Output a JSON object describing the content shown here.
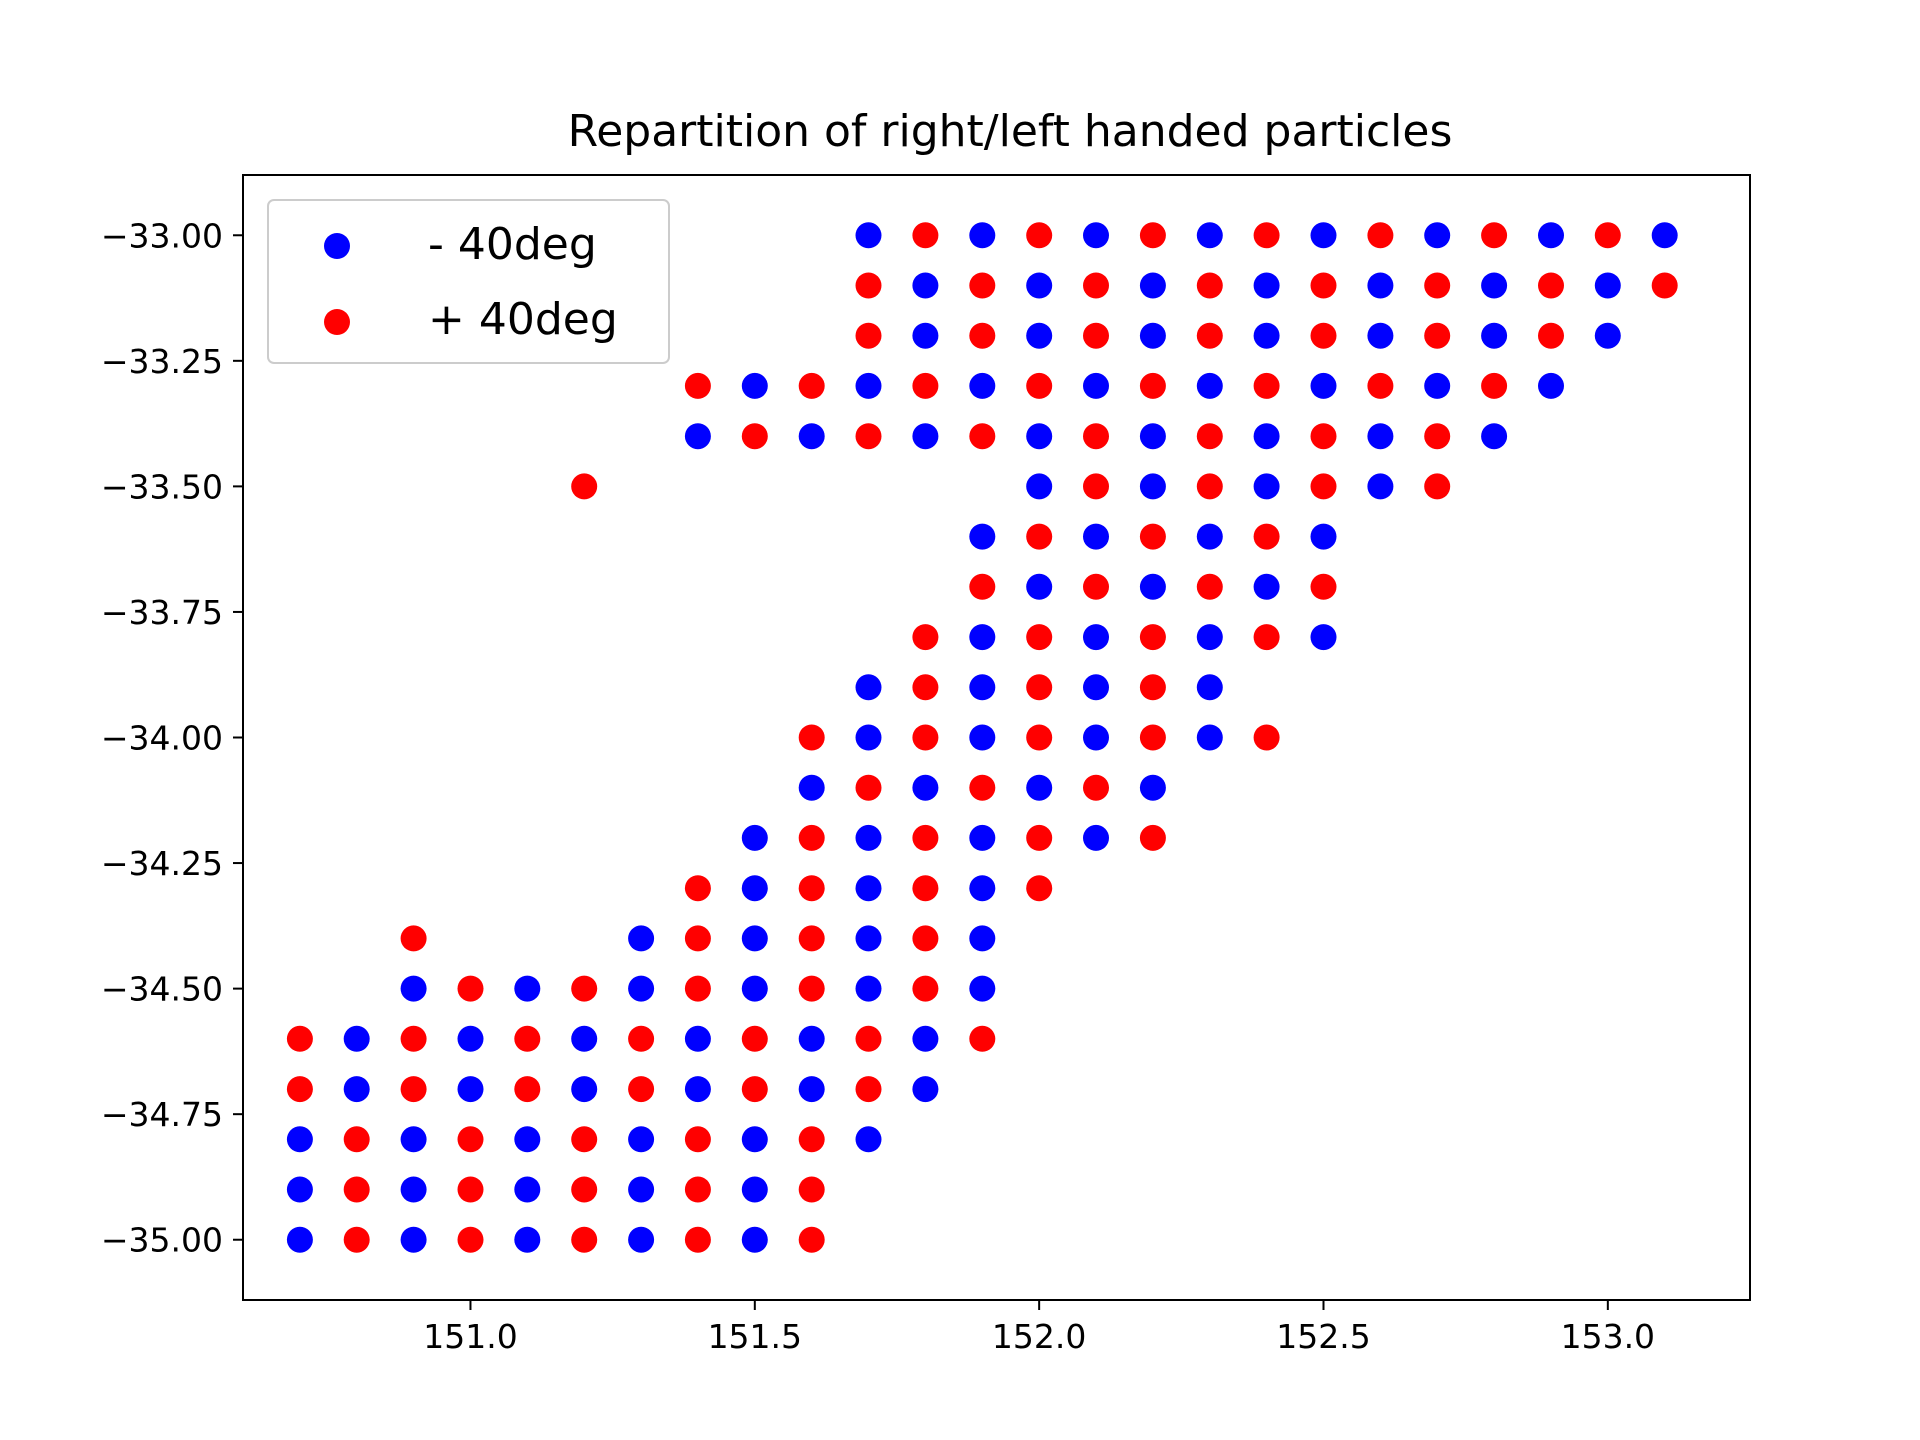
{
  "chart_data": {
    "type": "scatter",
    "title": "Repartition of right/left handed particles",
    "xlabel": "",
    "ylabel": "",
    "xlim": [
      150.6,
      153.25
    ],
    "ylim": [
      -35.12,
      -32.88
    ],
    "grid": false,
    "legend_position": "top-left",
    "x_ticks": [
      151.0,
      151.5,
      152.0,
      152.5,
      153.0
    ],
    "x_tick_labels": [
      "151.0",
      "151.5",
      "152.0",
      "152.5",
      "153.0"
    ],
    "y_ticks": [
      -33.0,
      -33.25,
      -33.5,
      -33.75,
      -34.0,
      -34.25,
      -34.5,
      -34.75,
      -35.0
    ],
    "y_tick_labels": [
      "−33.00",
      "−33.25",
      "−33.50",
      "−33.75",
      "−34.00",
      "−34.25",
      "−34.50",
      "−34.75",
      "−35.00"
    ],
    "series": [
      {
        "name": "- 40deg",
        "color": "#0000ff",
        "points": [
          [
            151.7,
            -33.0
          ],
          [
            151.9,
            -33.0
          ],
          [
            152.1,
            -33.0
          ],
          [
            152.3,
            -33.0
          ],
          [
            152.5,
            -33.0
          ],
          [
            152.7,
            -33.0
          ],
          [
            152.9,
            -33.0
          ],
          [
            153.1,
            -33.0
          ],
          [
            151.8,
            -33.1
          ],
          [
            152.0,
            -33.1
          ],
          [
            152.2,
            -33.1
          ],
          [
            152.4,
            -33.1
          ],
          [
            152.6,
            -33.1
          ],
          [
            152.8,
            -33.1
          ],
          [
            153.0,
            -33.1
          ],
          [
            151.8,
            -33.2
          ],
          [
            152.0,
            -33.2
          ],
          [
            152.2,
            -33.2
          ],
          [
            152.4,
            -33.2
          ],
          [
            152.6,
            -33.2
          ],
          [
            152.8,
            -33.2
          ],
          [
            153.0,
            -33.2
          ],
          [
            151.5,
            -33.3
          ],
          [
            151.7,
            -33.3
          ],
          [
            151.9,
            -33.3
          ],
          [
            152.1,
            -33.3
          ],
          [
            152.3,
            -33.3
          ],
          [
            152.5,
            -33.3
          ],
          [
            152.7,
            -33.3
          ],
          [
            152.9,
            -33.3
          ],
          [
            151.4,
            -33.4
          ],
          [
            151.6,
            -33.4
          ],
          [
            151.8,
            -33.4
          ],
          [
            152.0,
            -33.4
          ],
          [
            152.2,
            -33.4
          ],
          [
            152.4,
            -33.4
          ],
          [
            152.6,
            -33.4
          ],
          [
            152.8,
            -33.4
          ],
          [
            152.0,
            -33.5
          ],
          [
            152.2,
            -33.5
          ],
          [
            152.4,
            -33.5
          ],
          [
            152.6,
            -33.5
          ],
          [
            151.9,
            -33.6
          ],
          [
            152.1,
            -33.6
          ],
          [
            152.3,
            -33.6
          ],
          [
            152.5,
            -33.6
          ],
          [
            152.0,
            -33.7
          ],
          [
            152.2,
            -33.7
          ],
          [
            152.4,
            -33.7
          ],
          [
            151.9,
            -33.8
          ],
          [
            152.1,
            -33.8
          ],
          [
            152.3,
            -33.8
          ],
          [
            152.5,
            -33.8
          ],
          [
            151.7,
            -33.9
          ],
          [
            151.9,
            -33.9
          ],
          [
            152.1,
            -33.9
          ],
          [
            152.3,
            -33.9
          ],
          [
            151.7,
            -34.0
          ],
          [
            151.9,
            -34.0
          ],
          [
            152.1,
            -34.0
          ],
          [
            152.3,
            -34.0
          ],
          [
            151.6,
            -34.1
          ],
          [
            151.8,
            -34.1
          ],
          [
            152.0,
            -34.1
          ],
          [
            152.2,
            -34.1
          ],
          [
            151.5,
            -34.2
          ],
          [
            151.7,
            -34.2
          ],
          [
            151.9,
            -34.2
          ],
          [
            152.1,
            -34.2
          ],
          [
            151.5,
            -34.3
          ],
          [
            151.7,
            -34.3
          ],
          [
            151.9,
            -34.3
          ],
          [
            151.3,
            -34.4
          ],
          [
            151.5,
            -34.4
          ],
          [
            151.7,
            -34.4
          ],
          [
            151.9,
            -34.4
          ],
          [
            150.9,
            -34.5
          ],
          [
            151.1,
            -34.5
          ],
          [
            151.3,
            -34.5
          ],
          [
            151.5,
            -34.5
          ],
          [
            151.7,
            -34.5
          ],
          [
            151.9,
            -34.5
          ],
          [
            150.8,
            -34.6
          ],
          [
            151.0,
            -34.6
          ],
          [
            151.2,
            -34.6
          ],
          [
            151.4,
            -34.6
          ],
          [
            151.6,
            -34.6
          ],
          [
            151.8,
            -34.6
          ],
          [
            150.8,
            -34.7
          ],
          [
            151.0,
            -34.7
          ],
          [
            151.2,
            -34.7
          ],
          [
            151.4,
            -34.7
          ],
          [
            151.6,
            -34.7
          ],
          [
            151.8,
            -34.7
          ],
          [
            150.7,
            -34.8
          ],
          [
            150.9,
            -34.8
          ],
          [
            151.1,
            -34.8
          ],
          [
            151.3,
            -34.8
          ],
          [
            151.5,
            -34.8
          ],
          [
            151.7,
            -34.8
          ],
          [
            150.7,
            -34.9
          ],
          [
            150.9,
            -34.9
          ],
          [
            151.1,
            -34.9
          ],
          [
            151.3,
            -34.9
          ],
          [
            151.5,
            -34.9
          ],
          [
            150.7,
            -35.0
          ],
          [
            150.9,
            -35.0
          ],
          [
            151.1,
            -35.0
          ],
          [
            151.3,
            -35.0
          ],
          [
            151.5,
            -35.0
          ]
        ]
      },
      {
        "name": "+ 40deg",
        "color": "#ff0000",
        "points": [
          [
            151.8,
            -33.0
          ],
          [
            152.0,
            -33.0
          ],
          [
            152.2,
            -33.0
          ],
          [
            152.4,
            -33.0
          ],
          [
            152.6,
            -33.0
          ],
          [
            152.8,
            -33.0
          ],
          [
            153.0,
            -33.0
          ],
          [
            151.7,
            -33.1
          ],
          [
            151.9,
            -33.1
          ],
          [
            152.1,
            -33.1
          ],
          [
            152.3,
            -33.1
          ],
          [
            152.5,
            -33.1
          ],
          [
            152.7,
            -33.1
          ],
          [
            152.9,
            -33.1
          ],
          [
            153.1,
            -33.1
          ],
          [
            151.7,
            -33.2
          ],
          [
            151.9,
            -33.2
          ],
          [
            152.1,
            -33.2
          ],
          [
            152.3,
            -33.2
          ],
          [
            152.5,
            -33.2
          ],
          [
            152.7,
            -33.2
          ],
          [
            152.9,
            -33.2
          ],
          [
            151.4,
            -33.3
          ],
          [
            151.6,
            -33.3
          ],
          [
            151.8,
            -33.3
          ],
          [
            152.0,
            -33.3
          ],
          [
            152.2,
            -33.3
          ],
          [
            152.4,
            -33.3
          ],
          [
            152.6,
            -33.3
          ],
          [
            152.8,
            -33.3
          ],
          [
            151.5,
            -33.4
          ],
          [
            151.7,
            -33.4
          ],
          [
            151.9,
            -33.4
          ],
          [
            152.1,
            -33.4
          ],
          [
            152.3,
            -33.4
          ],
          [
            152.5,
            -33.4
          ],
          [
            152.7,
            -33.4
          ],
          [
            151.2,
            -33.5
          ],
          [
            152.1,
            -33.5
          ],
          [
            152.3,
            -33.5
          ],
          [
            152.5,
            -33.5
          ],
          [
            152.7,
            -33.5
          ],
          [
            152.0,
            -33.6
          ],
          [
            152.2,
            -33.6
          ],
          [
            152.4,
            -33.6
          ],
          [
            151.9,
            -33.7
          ],
          [
            152.1,
            -33.7
          ],
          [
            152.3,
            -33.7
          ],
          [
            152.5,
            -33.7
          ],
          [
            151.8,
            -33.8
          ],
          [
            152.0,
            -33.8
          ],
          [
            152.2,
            -33.8
          ],
          [
            152.4,
            -33.8
          ],
          [
            151.8,
            -33.9
          ],
          [
            152.0,
            -33.9
          ],
          [
            152.2,
            -33.9
          ],
          [
            151.6,
            -34.0
          ],
          [
            151.8,
            -34.0
          ],
          [
            152.0,
            -34.0
          ],
          [
            152.2,
            -34.0
          ],
          [
            152.4,
            -34.0
          ],
          [
            151.7,
            -34.1
          ],
          [
            151.9,
            -34.1
          ],
          [
            152.1,
            -34.1
          ],
          [
            151.6,
            -34.2
          ],
          [
            151.8,
            -34.2
          ],
          [
            152.0,
            -34.2
          ],
          [
            152.2,
            -34.2
          ],
          [
            151.4,
            -34.3
          ],
          [
            151.6,
            -34.3
          ],
          [
            151.8,
            -34.3
          ],
          [
            152.0,
            -34.3
          ],
          [
            150.9,
            -34.4
          ],
          [
            151.4,
            -34.4
          ],
          [
            151.6,
            -34.4
          ],
          [
            151.8,
            -34.4
          ],
          [
            151.0,
            -34.5
          ],
          [
            151.2,
            -34.5
          ],
          [
            151.4,
            -34.5
          ],
          [
            151.6,
            -34.5
          ],
          [
            151.8,
            -34.5
          ],
          [
            150.7,
            -34.6
          ],
          [
            150.9,
            -34.6
          ],
          [
            151.1,
            -34.6
          ],
          [
            151.3,
            -34.6
          ],
          [
            151.5,
            -34.6
          ],
          [
            151.7,
            -34.6
          ],
          [
            151.9,
            -34.6
          ],
          [
            150.7,
            -34.7
          ],
          [
            150.9,
            -34.7
          ],
          [
            151.1,
            -34.7
          ],
          [
            151.3,
            -34.7
          ],
          [
            151.5,
            -34.7
          ],
          [
            151.7,
            -34.7
          ],
          [
            150.8,
            -34.8
          ],
          [
            151.0,
            -34.8
          ],
          [
            151.2,
            -34.8
          ],
          [
            151.4,
            -34.8
          ],
          [
            151.6,
            -34.8
          ],
          [
            150.8,
            -34.9
          ],
          [
            151.0,
            -34.9
          ],
          [
            151.2,
            -34.9
          ],
          [
            151.4,
            -34.9
          ],
          [
            151.6,
            -34.9
          ],
          [
            150.8,
            -35.0
          ],
          [
            151.0,
            -35.0
          ],
          [
            151.2,
            -35.0
          ],
          [
            151.4,
            -35.0
          ],
          [
            151.6,
            -35.0
          ]
        ]
      }
    ]
  }
}
